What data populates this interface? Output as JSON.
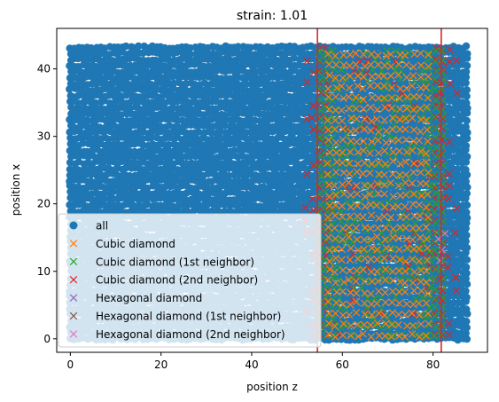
{
  "chart_data": {
    "type": "scatter",
    "title": "strain: 1.01",
    "xlabel": "position z",
    "ylabel": "position x",
    "xlim": [
      -3,
      92
    ],
    "ylim": [
      -2,
      46
    ],
    "xticks": [
      0,
      20,
      40,
      60,
      80
    ],
    "yticks": [
      0,
      10,
      20,
      30,
      40
    ],
    "grid": false,
    "legend_position": "lower-left",
    "vlines": [
      {
        "x": 54.5,
        "color": "#d62728"
      },
      {
        "x": 81.8,
        "color": "#d62728"
      }
    ],
    "series": [
      {
        "name": "all",
        "marker": "circle",
        "color": "#1f77b4",
        "x_range": [
          0,
          88
        ],
        "y_range": [
          0,
          43.5
        ]
      },
      {
        "name": "Cubic diamond",
        "marker": "x",
        "color": "#ff7f0e",
        "x_range": [
          57,
          80
        ],
        "y_range": [
          0.5,
          43.5
        ]
      },
      {
        "name": "Cubic diamond (1st neighbor)",
        "marker": "x",
        "color": "#2ca02c",
        "x_range": [
          55,
          82
        ],
        "y_range": [
          0.5,
          43.5
        ]
      },
      {
        "name": "Cubic diamond (2nd neighbor)",
        "marker": "x",
        "color": "#d62728",
        "x_range": [
          52,
          85
        ],
        "y_range": [
          0.5,
          43.5
        ]
      },
      {
        "name": "Hexagonal diamond",
        "marker": "x",
        "color": "#9467bd",
        "x_range": [],
        "y_range": []
      },
      {
        "name": "Hexagonal diamond (1st neighbor)",
        "marker": "x",
        "color": "#8c564b",
        "x_range": [],
        "y_range": []
      },
      {
        "name": "Hexagonal diamond (2nd neighbor)",
        "marker": "x",
        "color": "#e377c2",
        "x_range": [
          80,
          84
        ],
        "y_range": [
          10,
          16
        ]
      }
    ]
  }
}
